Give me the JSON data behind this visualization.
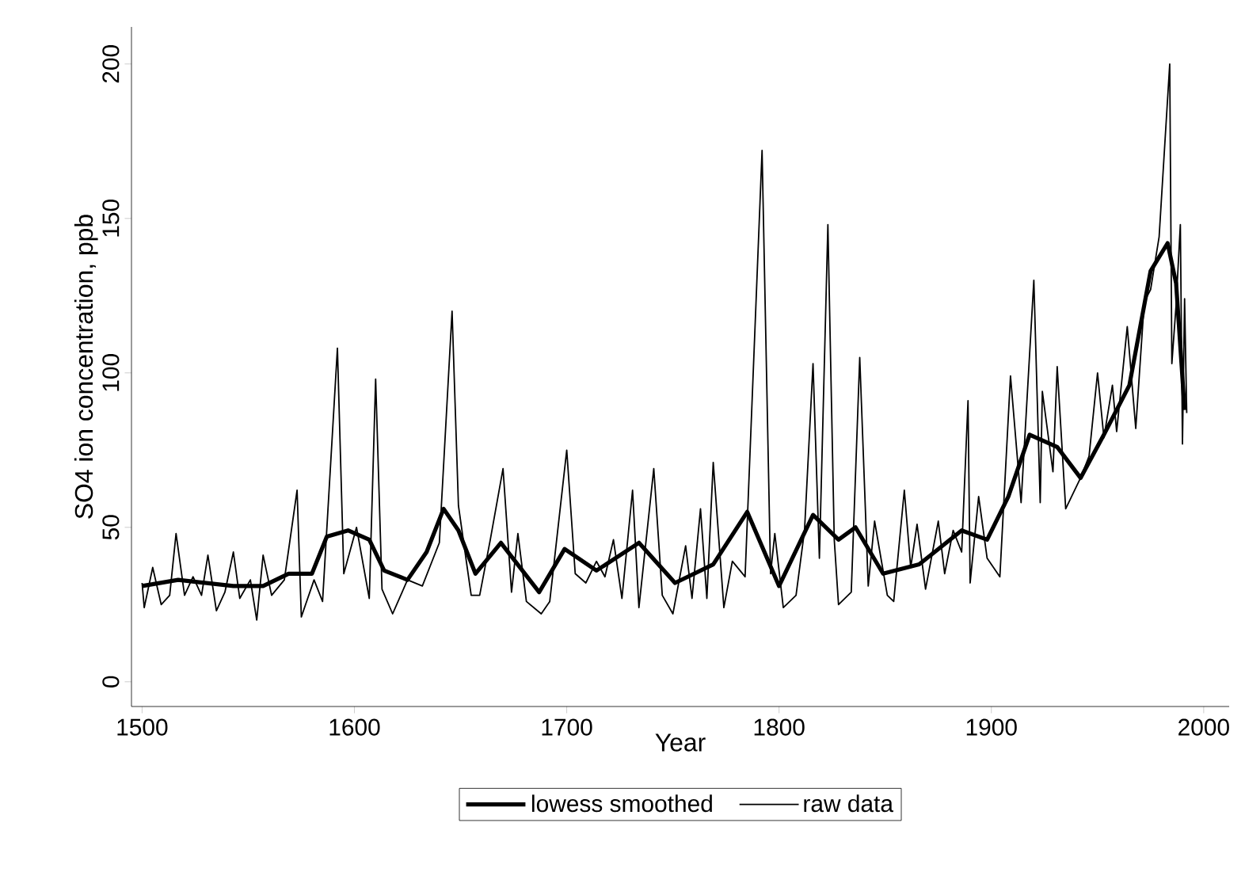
{
  "chart_data": {
    "type": "line",
    "xlabel": "Year",
    "ylabel": "SO4 ion concentration, ppb",
    "xlim": [
      1495,
      2012
    ],
    "ylim": [
      -8,
      212
    ],
    "xticks": [
      1500,
      1600,
      1700,
      1800,
      1900,
      2000
    ],
    "yticks": [
      0,
      50,
      100,
      150,
      200
    ],
    "grid": false,
    "legend": "bottom",
    "marker": "none",
    "line_style": "solid",
    "series": [
      {
        "name": "lowess smoothed",
        "color": "#000000",
        "x": [
          1500,
          1517,
          1543,
          1557,
          1569,
          1580,
          1587,
          1597,
          1607,
          1614,
          1625,
          1634,
          1642,
          1649,
          1657,
          1669,
          1687,
          1699,
          1714,
          1734,
          1751,
          1769,
          1785,
          1800,
          1816,
          1828,
          1836,
          1849,
          1866,
          1886,
          1898,
          1908,
          1918,
          1931,
          1942,
          1953,
          1965,
          1975,
          1983,
          1987,
          1991
        ],
        "values": [
          31,
          33,
          31,
          31,
          35,
          35,
          47,
          49,
          46,
          36,
          33,
          42,
          56,
          49,
          35,
          45,
          29,
          43,
          36,
          45,
          32,
          38,
          55,
          31,
          54,
          46,
          50,
          35,
          38,
          49,
          46,
          60,
          80,
          76,
          66,
          80,
          96,
          133,
          142,
          129,
          88
        ]
      },
      {
        "name": "raw data",
        "color": "#000000",
        "x": [
          1500,
          1501,
          1505,
          1509,
          1513,
          1516,
          1520,
          1524,
          1528,
          1531,
          1535,
          1539,
          1543,
          1546,
          1551,
          1554,
          1557,
          1561,
          1567,
          1573,
          1575,
          1581,
          1585,
          1592,
          1595,
          1601,
          1607,
          1610,
          1613,
          1618,
          1625,
          1632,
          1640,
          1646,
          1649,
          1655,
          1659,
          1664,
          1670,
          1674,
          1677,
          1681,
          1688,
          1692,
          1700,
          1704,
          1709,
          1714,
          1718,
          1722,
          1726,
          1731,
          1734,
          1741,
          1745,
          1750,
          1756,
          1759,
          1763,
          1766,
          1769,
          1774,
          1778,
          1784,
          1792,
          1796,
          1798,
          1802,
          1808,
          1812,
          1816,
          1819,
          1823,
          1826,
          1828,
          1834,
          1838,
          1842,
          1845,
          1851,
          1854,
          1859,
          1862,
          1865,
          1869,
          1875,
          1878,
          1882,
          1886,
          1889,
          1890,
          1894,
          1898,
          1904,
          1909,
          1914,
          1920,
          1923,
          1924,
          1929,
          1931,
          1935,
          1942,
          1946,
          1950,
          1953,
          1957,
          1959,
          1964,
          1968,
          1972,
          1975,
          1979,
          1984,
          1985,
          1987,
          1989,
          1990,
          1991,
          1992
        ],
        "values": [
          32,
          24,
          37,
          25,
          28,
          48,
          28,
          34,
          28,
          41,
          23,
          29,
          42,
          27,
          33,
          20,
          41,
          28,
          33,
          62,
          21,
          33,
          26,
          108,
          35,
          50,
          27,
          98,
          30,
          22,
          33,
          31,
          45,
          120,
          57,
          28,
          28,
          46,
          69,
          29,
          48,
          26,
          22,
          26,
          75,
          35,
          32,
          39,
          34,
          46,
          27,
          62,
          24,
          69,
          28,
          22,
          44,
          27,
          56,
          27,
          71,
          24,
          39,
          34,
          172,
          35,
          48,
          24,
          28,
          49,
          103,
          40,
          148,
          46,
          25,
          29,
          105,
          31,
          52,
          28,
          26,
          62,
          37,
          51,
          30,
          52,
          35,
          49,
          42,
          91,
          32,
          60,
          40,
          34,
          99,
          58,
          130,
          58,
          94,
          68,
          102,
          56,
          66,
          73,
          100,
          79,
          96,
          81,
          115,
          82,
          123,
          127,
          144,
          200,
          103,
          122,
          148,
          77,
          124,
          87
        ]
      }
    ]
  }
}
